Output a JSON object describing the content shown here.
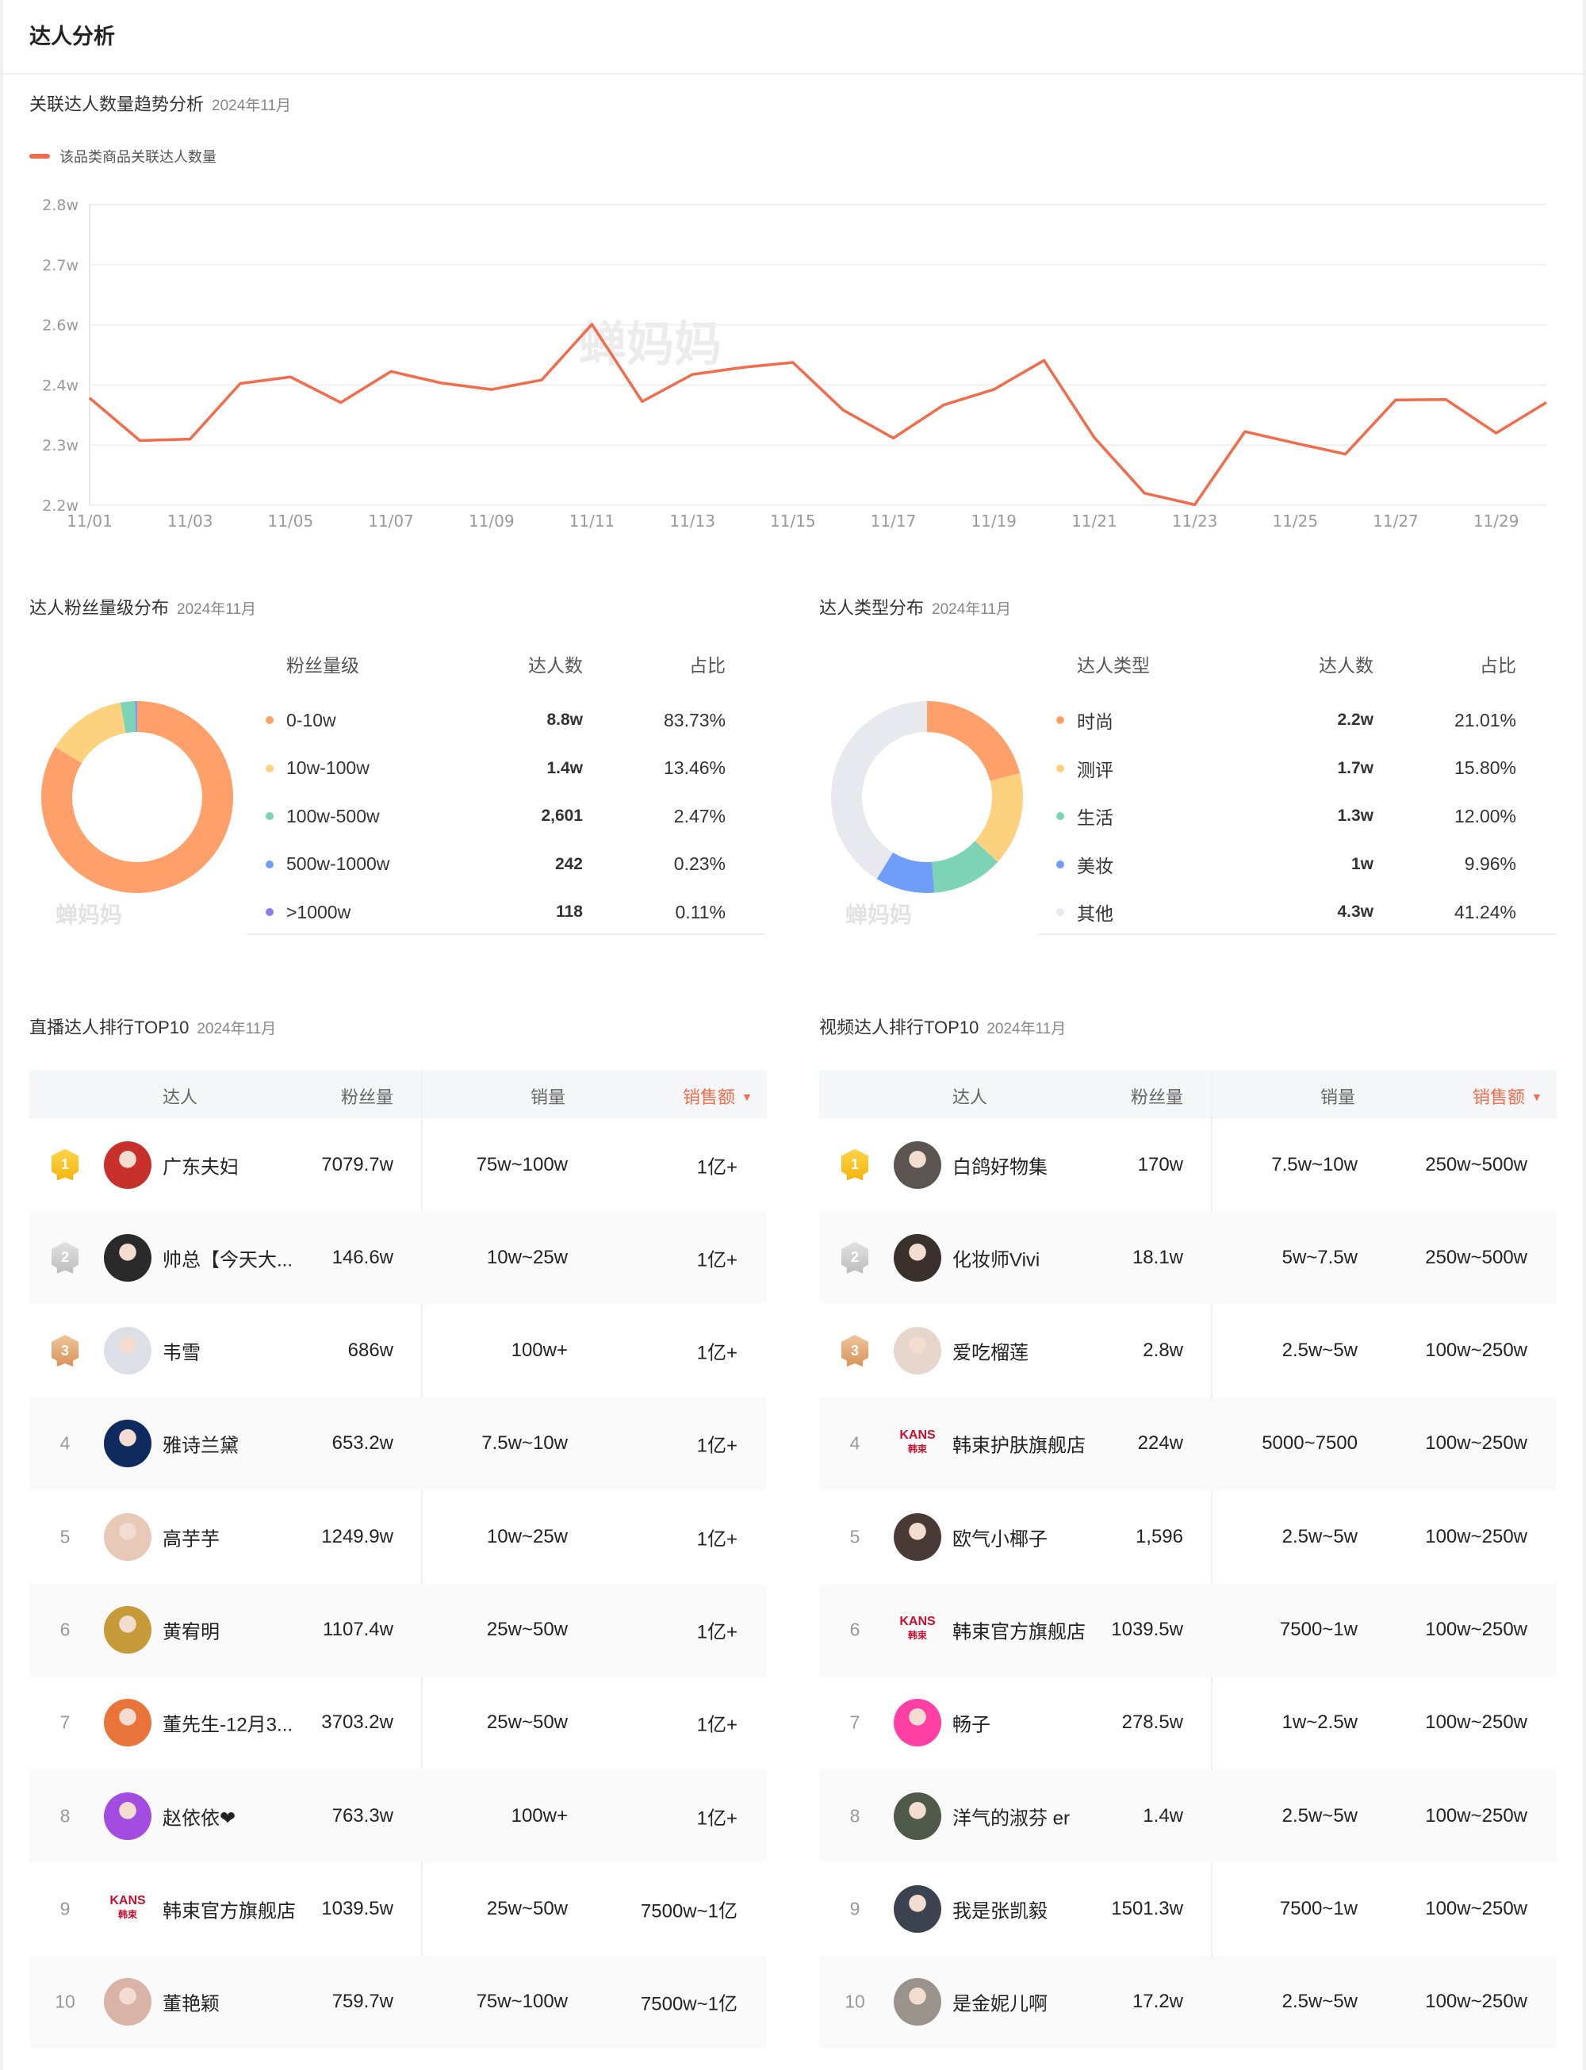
{
  "header": {
    "title": "达人分析"
  },
  "trend": {
    "title": "关联达人数量趋势分析",
    "period": "2024年11月",
    "legend": "该品类商品关联达人数量",
    "watermark": "蝉妈妈"
  },
  "colors": {
    "line": "#f26b4a",
    "accent": "#f26b4a",
    "orange": "#ffa06b",
    "yellow": "#fdd27e",
    "green": "#7cd3b5",
    "blue": "#6e9ef8",
    "purple": "#8b7cf6",
    "grey": "#e8e9ee"
  },
  "chart_data": [
    {
      "type": "line",
      "title": "关联达人数量趋势分析",
      "xlabel": "",
      "ylabel": "",
      "ylim": [
        2.2,
        2.8
      ],
      "yticks": [
        2.2,
        2.32,
        2.44,
        2.56,
        2.68,
        2.8
      ],
      "ytick_labels": [
        "2.2w",
        "2.3w",
        "2.4w",
        "2.6w",
        "2.7w",
        "2.8w"
      ],
      "x": [
        "11/01",
        "11/02",
        "11/03",
        "11/04",
        "11/05",
        "11/06",
        "11/07",
        "11/08",
        "11/09",
        "11/10",
        "11/11",
        "11/12",
        "11/13",
        "11/14",
        "11/15",
        "11/16",
        "11/17",
        "11/18",
        "11/19",
        "11/20",
        "11/21",
        "11/22",
        "11/23",
        "11/24",
        "11/25",
        "11/26",
        "11/27",
        "11/28",
        "11/29",
        "11/30"
      ],
      "xtick_labels": [
        "11/01",
        "11/03",
        "11/05",
        "11/07",
        "11/09",
        "11/11",
        "11/13",
        "11/15",
        "11/17",
        "11/19",
        "11/21",
        "11/23",
        "11/25",
        "11/27",
        "11/29"
      ],
      "grid": true,
      "legend": "top-left",
      "series": [
        {
          "name": "该品类商品关联达人数量",
          "unit": "w",
          "values": [
            2.414,
            2.329,
            2.332,
            2.443,
            2.456,
            2.405,
            2.467,
            2.444,
            2.431,
            2.45,
            2.561,
            2.407,
            2.461,
            2.475,
            2.485,
            2.39,
            2.334,
            2.4,
            2.431,
            2.489,
            2.335,
            2.224,
            2.201,
            2.347,
            2.324,
            2.302,
            2.41,
            2.411,
            2.344,
            2.405
          ]
        }
      ]
    },
    {
      "type": "pie",
      "title": "达人粉丝量级分布",
      "categories": [
        "0-10w",
        "10w-100w",
        "100w-500w",
        "500w-1000w",
        ">1000w"
      ],
      "values": [
        83.73,
        13.46,
        2.47,
        0.23,
        0.11
      ]
    },
    {
      "type": "pie",
      "title": "达人类型分布",
      "categories": [
        "时尚",
        "测评",
        "生活",
        "美妆",
        "其他"
      ],
      "values": [
        21.01,
        15.8,
        12.0,
        9.96,
        41.24
      ]
    }
  ],
  "fans_dist": {
    "title": "达人粉丝量级分布",
    "period": "2024年11月",
    "watermark": "蝉妈妈",
    "headers": [
      "粉丝量级",
      "达人数",
      "占比"
    ],
    "rows": [
      {
        "label": "0-10w",
        "count": "8.8w",
        "pct": "83.73%",
        "color": "#ffa06b"
      },
      {
        "label": "10w-100w",
        "count": "1.4w",
        "pct": "13.46%",
        "color": "#fdd27e"
      },
      {
        "label": "100w-500w",
        "count": "2,601",
        "pct": "2.47%",
        "color": "#7cd3b5"
      },
      {
        "label": "500w-1000w",
        "count": "242",
        "pct": "0.23%",
        "color": "#6e9ef8"
      },
      {
        "label": ">1000w",
        "count": "118",
        "pct": "0.11%",
        "color": "#8b7cf6"
      }
    ]
  },
  "type_dist": {
    "title": "达人类型分布",
    "period": "2024年11月",
    "watermark": "蝉妈妈",
    "headers": [
      "达人类型",
      "达人数",
      "占比"
    ],
    "rows": [
      {
        "label": "时尚",
        "count": "2.2w",
        "pct": "21.01%",
        "color": "#ffa06b"
      },
      {
        "label": "测评",
        "count": "1.7w",
        "pct": "15.80%",
        "color": "#fdd27e"
      },
      {
        "label": "生活",
        "count": "1.3w",
        "pct": "12.00%",
        "color": "#7cd3b5"
      },
      {
        "label": "美妆",
        "count": "1w",
        "pct": "9.96%",
        "color": "#6e9ef8"
      },
      {
        "label": "其他",
        "count": "4.3w",
        "pct": "41.24%",
        "color": "#e8e9ee"
      }
    ]
  },
  "live_top": {
    "title": "直播达人排行TOP10",
    "period": "2024年11月",
    "headers": {
      "talent": "达人",
      "fans": "粉丝量",
      "sales": "销量",
      "revenue": "销售额"
    },
    "rows": [
      {
        "rank": "1",
        "name": "广东夫妇",
        "fans": "7079.7w",
        "sales": "75w~100w",
        "revenue": "1亿+",
        "avatar": "#c8302c"
      },
      {
        "rank": "2",
        "name": "帅总【今天大...",
        "fans": "146.6w",
        "sales": "10w~25w",
        "revenue": "1亿+",
        "avatar": "#2a2a2a"
      },
      {
        "rank": "3",
        "name": "韦雪",
        "fans": "686w",
        "sales": "100w+",
        "revenue": "1亿+",
        "avatar": "#dcdfe6"
      },
      {
        "rank": "4",
        "name": "雅诗兰黛",
        "fans": "653.2w",
        "sales": "7.5w~10w",
        "revenue": "1亿+",
        "avatar": "#0f2a5c"
      },
      {
        "rank": "5",
        "name": "高芋芋",
        "fans": "1249.9w",
        "sales": "10w~25w",
        "revenue": "1亿+",
        "avatar": "#e8c9b8"
      },
      {
        "rank": "6",
        "name": "黄宥明",
        "fans": "1107.4w",
        "sales": "25w~50w",
        "revenue": "1亿+",
        "avatar": "#c79a3a"
      },
      {
        "rank": "7",
        "name": "董先生-12月3...",
        "fans": "3703.2w",
        "sales": "25w~50w",
        "revenue": "1亿+",
        "avatar": "#e8743a"
      },
      {
        "rank": "8",
        "name": "赵依依❤",
        "fans": "763.3w",
        "sales": "100w+",
        "revenue": "1亿+",
        "avatar": "#a24de0"
      },
      {
        "rank": "9",
        "name": "韩束官方旗舰店",
        "fans": "1039.5w",
        "sales": "25w~50w",
        "revenue": "7500w~1亿",
        "logo": "KANS",
        "logo_sub": "韩束"
      },
      {
        "rank": "10",
        "name": "董艳颖",
        "fans": "759.7w",
        "sales": "75w~100w",
        "revenue": "7500w~1亿",
        "avatar": "#d9b3a5"
      }
    ]
  },
  "video_top": {
    "title": "视频达人排行TOP10",
    "period": "2024年11月",
    "headers": {
      "talent": "达人",
      "fans": "粉丝量",
      "sales": "销量",
      "revenue": "销售额"
    },
    "rows": [
      {
        "rank": "1",
        "name": "白鸽好物集",
        "fans": "170w",
        "sales": "7.5w~10w",
        "revenue": "250w~500w",
        "avatar": "#5a5550"
      },
      {
        "rank": "2",
        "name": "化妆师Vivi",
        "fans": "18.1w",
        "sales": "5w~7.5w",
        "revenue": "250w~500w",
        "avatar": "#3a302c"
      },
      {
        "rank": "3",
        "name": "爱吃榴莲",
        "fans": "2.8w",
        "sales": "2.5w~5w",
        "revenue": "100w~250w",
        "avatar": "#e6d6cc"
      },
      {
        "rank": "4",
        "name": "韩束护肤旗舰店",
        "fans": "224w",
        "sales": "5000~7500",
        "revenue": "100w~250w",
        "logo": "KANS",
        "logo_sub": "韩束"
      },
      {
        "rank": "5",
        "name": "欧气小椰子",
        "fans": "1,596",
        "sales": "2.5w~5w",
        "revenue": "100w~250w",
        "avatar": "#4a3a36"
      },
      {
        "rank": "6",
        "name": "韩束官方旗舰店",
        "fans": "1039.5w",
        "sales": "7500~1w",
        "revenue": "100w~250w",
        "logo": "KANS",
        "logo_sub": "韩束"
      },
      {
        "rank": "7",
        "name": "畅子",
        "fans": "278.5w",
        "sales": "1w~2.5w",
        "revenue": "100w~250w",
        "avatar": "#ff3fa4"
      },
      {
        "rank": "8",
        "name": "洋气的淑芬 er",
        "fans": "1.4w",
        "sales": "2.5w~5w",
        "revenue": "100w~250w",
        "avatar": "#4d5a4a"
      },
      {
        "rank": "9",
        "name": "我是张凯毅",
        "fans": "1501.3w",
        "sales": "7500~1w",
        "revenue": "100w~250w",
        "avatar": "#3b4350"
      },
      {
        "rank": "10",
        "name": "是金妮儿啊",
        "fans": "17.2w",
        "sales": "2.5w~5w",
        "revenue": "100w~250w",
        "avatar": "#9a938c"
      }
    ]
  }
}
